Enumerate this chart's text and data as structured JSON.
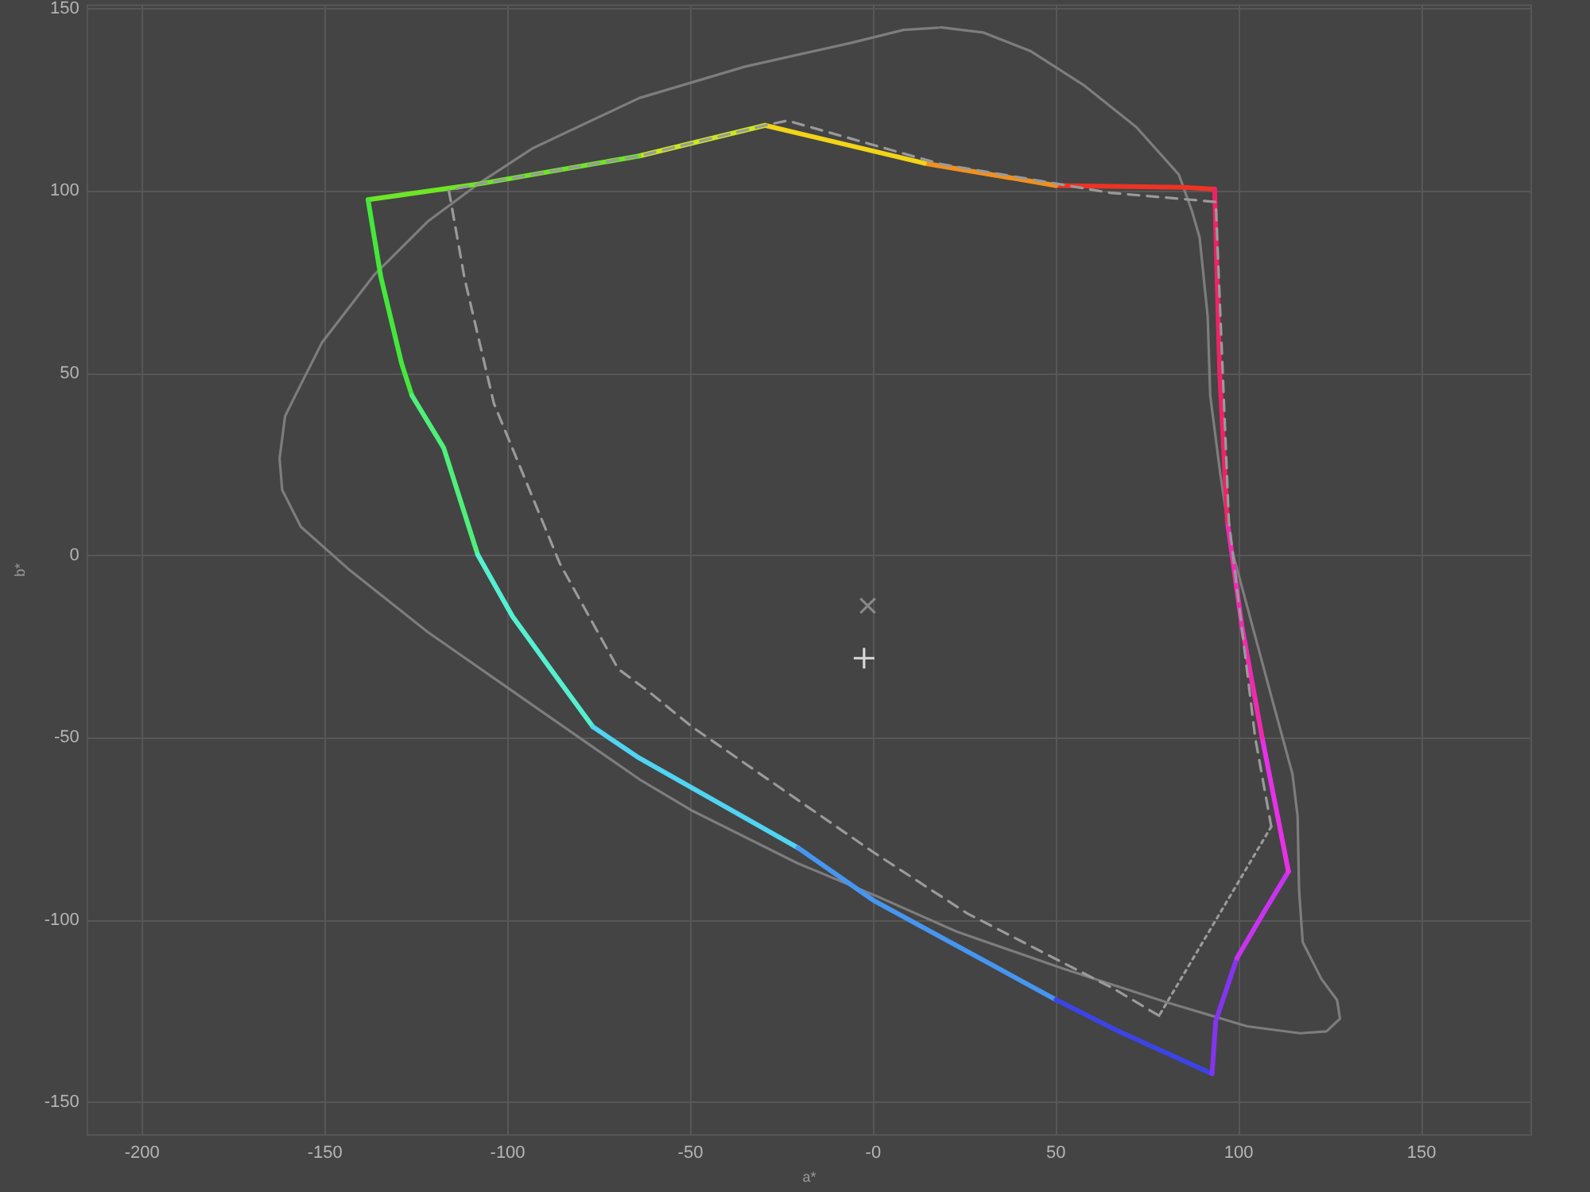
{
  "chart_data": {
    "type": "line",
    "xlabel": "a*",
    "ylabel": "b*",
    "xlim": [
      -215,
      180
    ],
    "ylim": [
      -159,
      151
    ],
    "xticks": [
      -200,
      -150,
      -100,
      -50,
      {
        "value": 0,
        "label": "-0"
      },
      50,
      100,
      150
    ],
    "yticks": [
      -150,
      -100,
      -50,
      0,
      50,
      100,
      150
    ],
    "grid": true,
    "marker": "none",
    "line_style": "solid",
    "series": [
      {
        "color": "#7d7d7d",
        "x": [
          18.4,
          30,
          43,
          57.5,
          72,
          83.6,
          87.2,
          89.3,
          91.5,
          92.2,
          95,
          98,
          103.8,
          109.6,
          114.7,
          116.1,
          116.5,
          117.5,
          122.6,
          126.9,
          127.7,
          124,
          116.8,
          102.3,
          80.6,
          66.2,
          51.7,
          22.8,
          0.3,
          -20.6,
          -49.6,
          -64,
          -93,
          -121.9,
          -143.6,
          -156.6,
          -161.7,
          -162.4,
          -160.9,
          -158.1,
          -150.8,
          -136.4,
          -121.9,
          -107.4,
          -93,
          -64,
          -35.1,
          -6.2,
          8.3,
          17.8
        ],
        "values": [
          144.9,
          143.5,
          138.4,
          129.1,
          117.5,
          104.5,
          94.5,
          87.2,
          65.6,
          43.9,
          22,
          2.1,
          -19.6,
          -41.2,
          -60,
          -71.5,
          -91.7,
          -106.1,
          -116.2,
          -122,
          -127.1,
          -130.6,
          -131.1,
          -129.2,
          -122.7,
          -118,
          -113.3,
          -103.2,
          -93.2,
          -84.5,
          -70,
          -61.4,
          -41.2,
          -21,
          -3.7,
          7.9,
          18,
          26.6,
          38.2,
          43.9,
          58.4,
          77.1,
          91.6,
          102.4,
          111.8,
          125.5,
          134.1,
          140.6,
          144.2,
          144.8
        ]
      },
      {
        "color": "#ee3324",
        "x": [
          93.4,
          85,
          50
        ],
        "values": [
          100.5,
          101,
          101.5
        ]
      },
      {
        "color": "#f2901c",
        "x": [
          50,
          14
        ],
        "values": [
          101.5,
          107.6
        ]
      },
      {
        "color": "#f2d418",
        "x": [
          14,
          -29.6
        ],
        "values": [
          107.6,
          118
        ]
      },
      {
        "color": "#cce622",
        "x": [
          -29.6,
          -64
        ],
        "values": [
          118,
          109.6
        ]
      },
      {
        "color": "#6ee626",
        "x": [
          -64,
          -107.4,
          -138.2
        ],
        "values": [
          109.6,
          102,
          97.6
        ]
      },
      {
        "color": "#44e83a",
        "x": [
          -138.2,
          -134.7,
          -129,
          -126.2
        ],
        "values": [
          97.6,
          76.4,
          52.6,
          43.9
        ]
      },
      {
        "color": "#4ef07a",
        "x": [
          -126.2,
          -117.5,
          -108.2
        ],
        "values": [
          43.9,
          29.5,
          0.2
        ]
      },
      {
        "color": "#54f0d0",
        "x": [
          -108.2,
          -98.7,
          -87.2,
          -76.7
        ],
        "values": [
          0.2,
          -16.7,
          -32.6,
          -47
        ]
      },
      {
        "color": "#50d4f2",
        "x": [
          -76.7,
          -64,
          -20.6
        ],
        "values": [
          -47,
          -55.6,
          -80.2
        ]
      },
      {
        "color": "#4696f0",
        "x": [
          -20.6,
          0,
          50
        ],
        "values": [
          -80.2,
          -94.6,
          -121.9
        ]
      },
      {
        "color": "#3c44e6",
        "x": [
          50,
          66,
          92.7
        ],
        "values": [
          -121.9,
          -130,
          -142.2
        ]
      },
      {
        "color": "#8434f0",
        "x": [
          92.7,
          93.7,
          99.5
        ],
        "values": [
          -142.2,
          -127.8,
          -110.5
        ]
      },
      {
        "color": "#c832f0",
        "x": [
          99.5,
          106.7,
          113.6
        ],
        "values": [
          -110.5,
          -98.2,
          -86.7
        ]
      },
      {
        "color": "#e830e8",
        "x": [
          113.6,
          106.4
        ],
        "values": [
          -86.7,
          -50
        ]
      },
      {
        "color": "#f02ab0",
        "x": [
          106.4,
          100.9,
          96.9
        ],
        "values": [
          -50,
          -19.6,
          9.3
        ]
      },
      {
        "color": "#f02266",
        "x": [
          96.9,
          94.8,
          93.4
        ],
        "values": [
          9.3,
          50,
          100.5
        ]
      },
      {
        "color": "#9a9a9a",
        "line_style": "dashed",
        "x": [
          78.2,
          66.2,
          25.7,
          0.3,
          -49.6,
          -61.1,
          -69.8,
          -85.7,
          -103.8,
          -111.8,
          -116.1,
          -107.4,
          -64,
          -29.6,
          -23.5,
          18.4,
          64.8,
          93.7,
          97.3,
          104.5,
          108.9
        ],
        "values": [
          -126.3,
          -119.1,
          -98.2,
          -81.6,
          -47,
          -37.6,
          -31.1,
          -2.3,
          41.8,
          76,
          100.2,
          102,
          109.6,
          118,
          119.3,
          107.4,
          99.5,
          97,
          9.3,
          -50,
          -74.4
        ]
      },
      {
        "color": "#9a9a9a",
        "line_style": "dotted",
        "x": [
          108.9,
          78.2
        ],
        "values": [
          -74.4,
          -126.3
        ]
      },
      {
        "type": "scatter",
        "marker": "x",
        "color": "#9a9a9a",
        "x": [
          -1.5
        ],
        "values": [
          -13.8
        ]
      },
      {
        "type": "scatter",
        "marker": "cross",
        "color": "#ffffff",
        "x": [
          -2.5
        ],
        "values": [
          -28.2
        ]
      }
    ]
  }
}
